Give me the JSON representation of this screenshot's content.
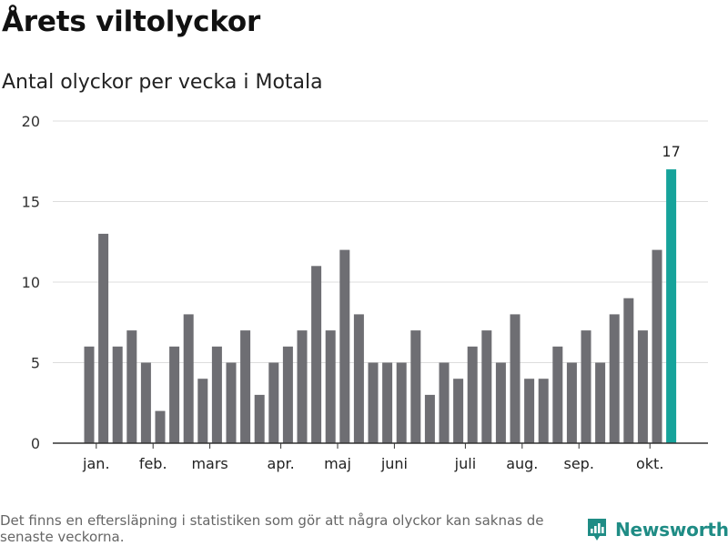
{
  "header": {
    "title": "Årets viltolyckor",
    "subtitle": "Antal olyckor per vecka i Motala"
  },
  "footer": {
    "note": "Det finns en eftersläpning i statistiken som gör att några olyckor kan saknas de senaste veckorna.",
    "brand": "Newsworthy"
  },
  "colors": {
    "bar": "#6e6e73",
    "highlight": "#16a39b",
    "grid": "#dddddd",
    "axis": "#333333",
    "brand": "#1f8c85"
  },
  "chart_data": {
    "type": "bar",
    "title": "Årets viltolyckor",
    "subtitle": "Antal olyckor per vecka i Motala",
    "xlabel": "",
    "ylabel": "",
    "ylim": [
      0,
      20
    ],
    "yticks": [
      0,
      5,
      10,
      15,
      20
    ],
    "grid": true,
    "x": [
      1,
      2,
      3,
      4,
      5,
      6,
      7,
      8,
      9,
      10,
      11,
      12,
      13,
      14,
      15,
      16,
      17,
      18,
      19,
      20,
      21,
      22,
      23,
      24,
      25,
      26,
      27,
      28,
      29,
      30,
      31,
      32,
      33,
      34,
      35,
      36,
      37,
      38,
      39,
      40,
      41,
      42
    ],
    "values": [
      6,
      13,
      6,
      7,
      5,
      2,
      6,
      8,
      4,
      6,
      5,
      7,
      3,
      5,
      6,
      7,
      11,
      7,
      12,
      8,
      5,
      5,
      5,
      7,
      3,
      5,
      4,
      6,
      7,
      5,
      8,
      4,
      4,
      6,
      5,
      7,
      5,
      8,
      9,
      7,
      12,
      17
    ],
    "highlight_index": 41,
    "annotations": [
      {
        "x": 42,
        "text": "17"
      }
    ],
    "month_ticks": [
      {
        "label": "jan.",
        "x": 1.5
      },
      {
        "label": "feb.",
        "x": 5.5
      },
      {
        "label": "mars",
        "x": 9.5
      },
      {
        "label": "apr.",
        "x": 14.5
      },
      {
        "label": "maj",
        "x": 18.5
      },
      {
        "label": "juni",
        "x": 22.5
      },
      {
        "label": "juli",
        "x": 27.5
      },
      {
        "label": "aug.",
        "x": 31.5
      },
      {
        "label": "sep.",
        "x": 35.5
      },
      {
        "label": "okt.",
        "x": 40.5
      }
    ]
  }
}
